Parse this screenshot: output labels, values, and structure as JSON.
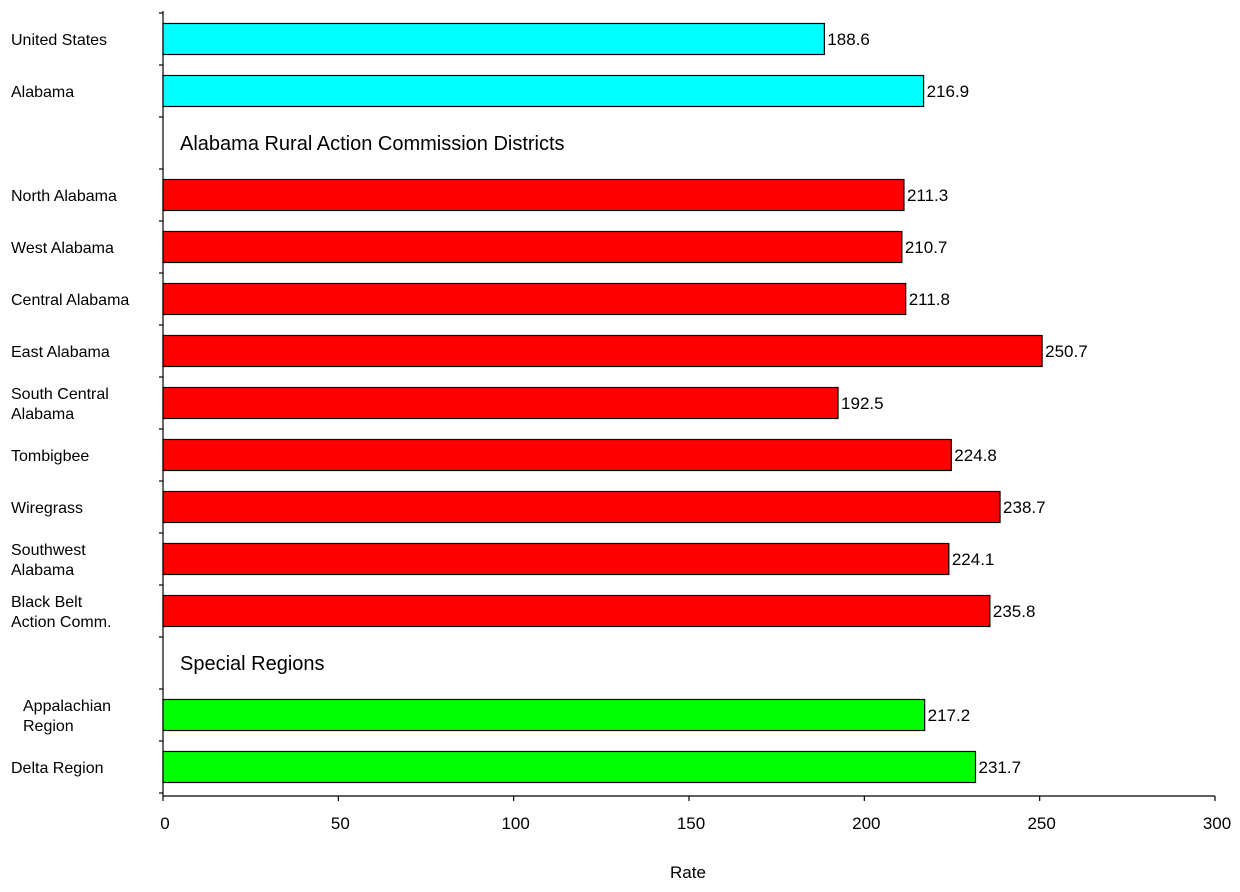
{
  "chart_data": {
    "type": "bar",
    "orientation": "horizontal",
    "xlabel": "Rate",
    "ylabel": "",
    "xlim": [
      0,
      300
    ],
    "xticks": [
      0,
      50,
      100,
      150,
      200,
      250,
      300
    ],
    "grid": false,
    "legend": "none",
    "colors": {
      "national_state": "#00ffff",
      "districts": "#ff0000",
      "special": "#00ff00",
      "outline": "#000000"
    },
    "rows": [
      {
        "kind": "bar",
        "label": [
          "United States"
        ],
        "value": 188.6,
        "value_label": "188.6",
        "group": "national_state"
      },
      {
        "kind": "bar",
        "label": [
          "Alabama"
        ],
        "value": 216.9,
        "value_label": "216.9",
        "group": "national_state"
      },
      {
        "kind": "section",
        "label": [
          "Alabama Rural Action Commission Districts"
        ]
      },
      {
        "kind": "bar",
        "label": [
          "North Alabama"
        ],
        "value": 211.3,
        "value_label": "211.3",
        "group": "districts"
      },
      {
        "kind": "bar",
        "label": [
          "West Alabama"
        ],
        "value": 210.7,
        "value_label": "210.7",
        "group": "districts"
      },
      {
        "kind": "bar",
        "label": [
          "Central Alabama"
        ],
        "value": 211.8,
        "value_label": "211.8",
        "group": "districts"
      },
      {
        "kind": "bar",
        "label": [
          "East Alabama"
        ],
        "value": 250.7,
        "value_label": "250.7",
        "group": "districts"
      },
      {
        "kind": "bar",
        "label": [
          "South Central",
          "Alabama"
        ],
        "value": 192.5,
        "value_label": "192.5",
        "group": "districts"
      },
      {
        "kind": "bar",
        "label": [
          "Tombigbee"
        ],
        "value": 224.8,
        "value_label": "224.8",
        "group": "districts"
      },
      {
        "kind": "bar",
        "label": [
          "Wiregrass"
        ],
        "value": 238.7,
        "value_label": "238.7",
        "group": "districts"
      },
      {
        "kind": "bar",
        "label": [
          "Southwest",
          "Alabama"
        ],
        "value": 224.1,
        "value_label": "224.1",
        "group": "districts"
      },
      {
        "kind": "bar",
        "label": [
          "Black Belt",
          "Action Comm."
        ],
        "value": 235.8,
        "value_label": "235.8",
        "group": "districts"
      },
      {
        "kind": "section",
        "label": [
          "Special Regions"
        ]
      },
      {
        "kind": "bar",
        "label": [
          "Appalachian",
          "Region"
        ],
        "value": 217.2,
        "value_label": "217.2",
        "group": "special"
      },
      {
        "kind": "bar",
        "label": [
          "Delta Region"
        ],
        "value": 231.7,
        "value_label": "231.7",
        "group": "special"
      }
    ]
  }
}
